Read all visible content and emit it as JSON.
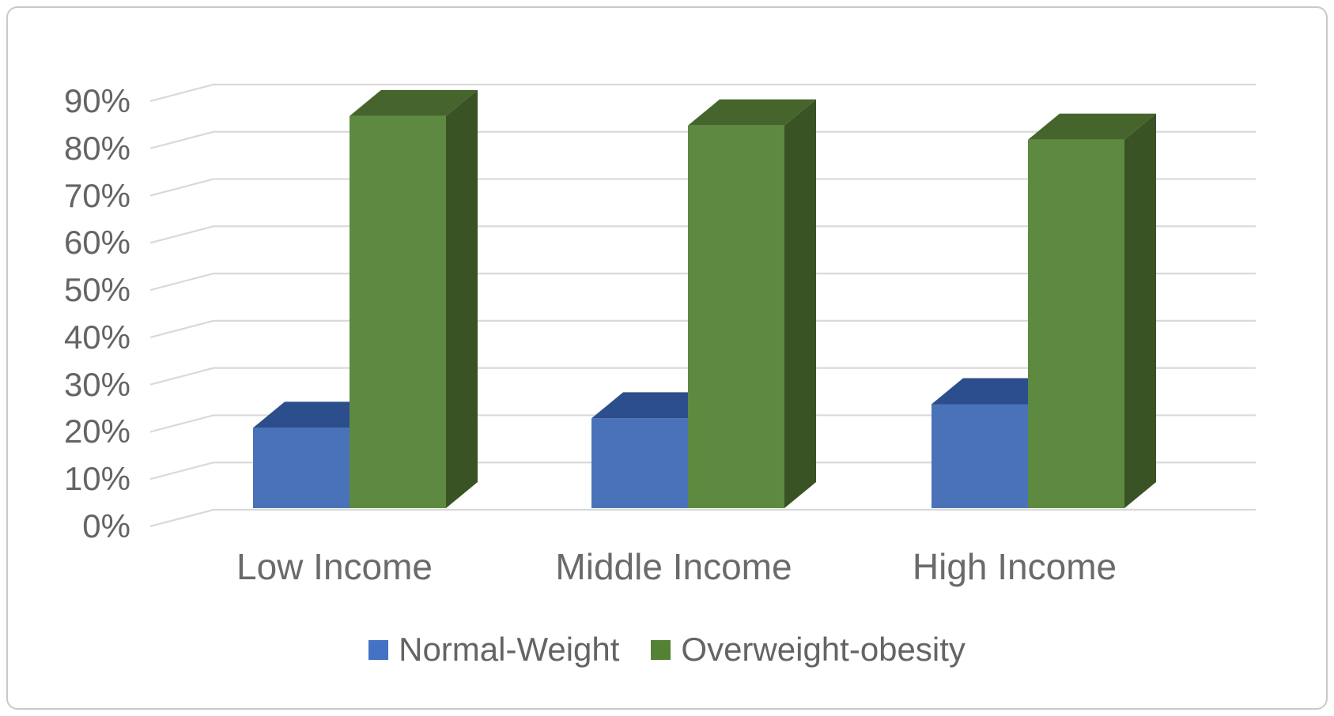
{
  "figure_role": "3d-clustered-column-chart",
  "chart_data": {
    "type": "bar",
    "style": "3d-clustered-column",
    "title": "",
    "categories": [
      "Low Income",
      "Middle Income",
      "High Income"
    ],
    "series": [
      {
        "name": "Normal-Weight",
        "values_pct": [
          17,
          19,
          22
        ]
      },
      {
        "name": "Overweight-obesity",
        "values_pct": [
          83,
          81,
          78
        ]
      }
    ],
    "y_ticks": [
      "0%",
      "10%",
      "20%",
      "30%",
      "40%",
      "50%",
      "60%",
      "70%",
      "80%",
      "90%"
    ],
    "ylim": [
      0,
      90
    ],
    "gridlines": "horizontal-light-gray",
    "legend_position": "bottom"
  },
  "colors": {
    "background": "#ffffff",
    "frame_border": "#c9c9c9",
    "gridline": "#d9d9d9",
    "axis_text": "#646464",
    "category_text": "#6a6a6a",
    "legend_text": "#646464",
    "series_normal_weight": {
      "front": "#4a72b9",
      "top": "#2d4e8c",
      "side": "#21407a",
      "swatch": "#4472c4"
    },
    "series_overweight_obesity": {
      "front": "#5d8a40",
      "top": "#45652d",
      "side": "#3a5325",
      "swatch": "#548235"
    }
  }
}
